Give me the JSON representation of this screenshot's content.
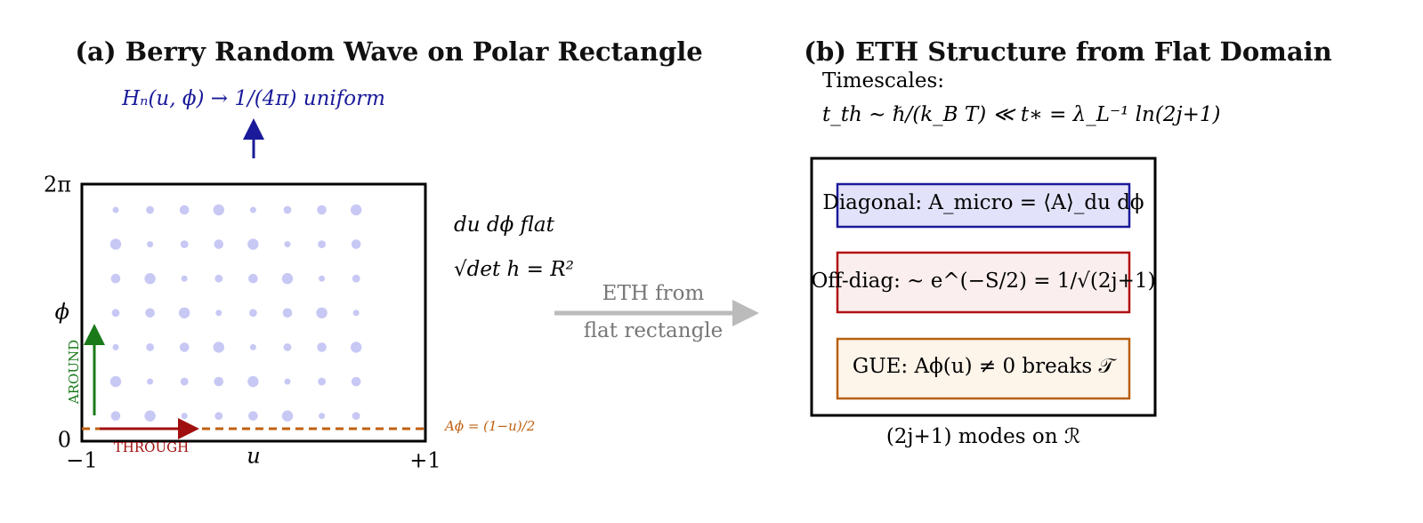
{
  "panel_a": {
    "title": "(a) Berry Random Wave on Polar Rectangle",
    "top_label": "Hₙ(u, ϕ) → 1/(4π) uniform",
    "y_top": "2π",
    "y_mid": "ϕ",
    "y_bottom": "0",
    "x_left": "−1",
    "x_mid": "u",
    "x_right": "+1",
    "around": "AROUND",
    "through": "THROUGH",
    "gauge_label": "Aϕ = (1−u)/2",
    "measure": "du dϕ flat",
    "det": "√det h = R²"
  },
  "arrow": {
    "line1": "ETH from",
    "line2": "flat rectangle"
  },
  "panel_b": {
    "title": "(b) ETH Structure from Flat Domain",
    "timescales_heading": "Timescales:",
    "timescales": "t_th ∼ ℏ/(k_B T) ≪ t∗ = λ_L⁻¹ ln(2j+1)",
    "boxes": [
      "Diagonal: A_micro = ⟨A⟩_du dϕ",
      "Off-diag: ∼ e^(−S/2) = 1/√(2j+1)",
      "GUE: Aϕ(u) ≠ 0 breaks 𝒯"
    ],
    "caption": "(2j+1) modes on ℛ"
  }
}
